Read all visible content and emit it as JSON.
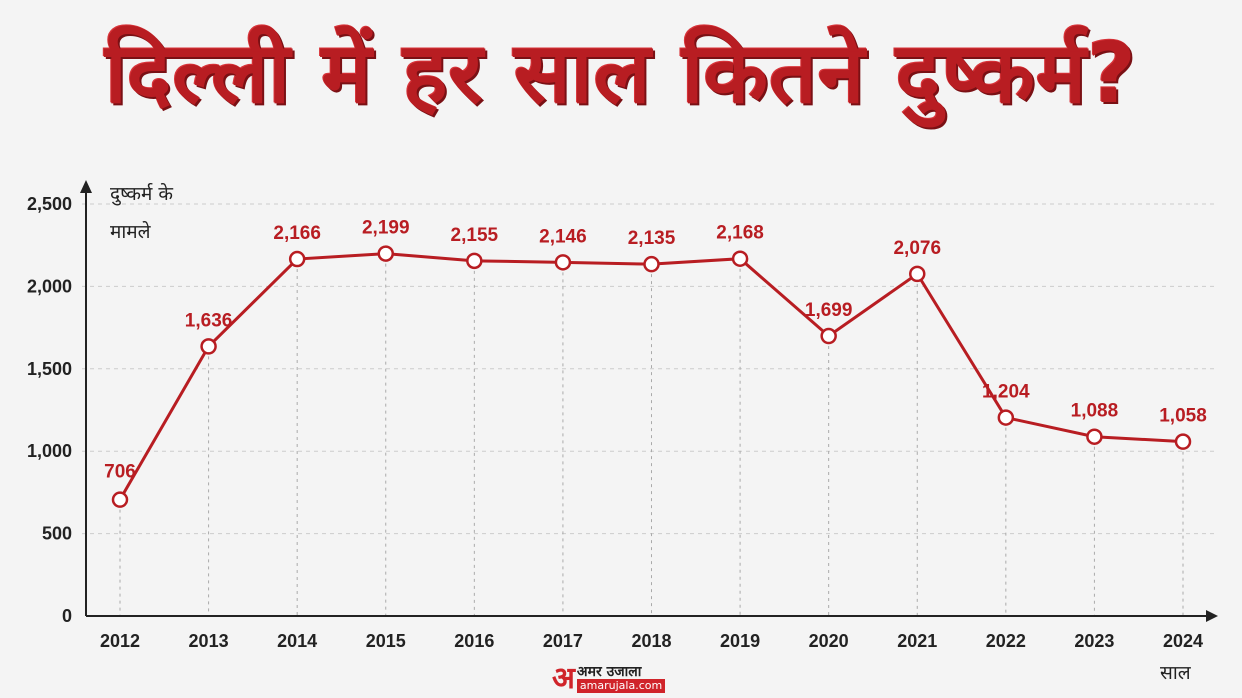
{
  "title": "दिल्ली में हर साल कितने दुष्कर्म?",
  "logo": {
    "hindi": "अमर उजाला",
    "url": "amarujala.com",
    "mark": "अ"
  },
  "colors": {
    "accent": "#b81d22",
    "axis": "#222222",
    "grid": "#cccccc",
    "background": "#f4f4f4"
  },
  "chart_data": {
    "type": "line",
    "title": "दिल्ली में हर साल कितने दुष्कर्म?",
    "ylabel": [
      "दुष्कर्म के",
      "मामले"
    ],
    "xlabel": "साल",
    "categories": [
      "2012",
      "2013",
      "2014",
      "2015",
      "2016",
      "2017",
      "2018",
      "2019",
      "2020",
      "2021",
      "2022",
      "2023",
      "2024"
    ],
    "values": [
      706,
      1636,
      2166,
      2199,
      2155,
      2146,
      2135,
      2168,
      1699,
      2076,
      1204,
      1088,
      1058
    ],
    "value_labels": [
      "706",
      "1,636",
      "2,166",
      "2,199",
      "2,155",
      "2,146",
      "2,135",
      "2,168",
      "1,699",
      "2,076",
      "1,204",
      "1,088",
      "1,058"
    ],
    "yticks": [
      0,
      500,
      1000,
      1500,
      2000,
      2500
    ],
    "ytick_labels": [
      "0",
      "500",
      "1,000",
      "1,500",
      "2,000",
      "2,500"
    ],
    "ylim": [
      0,
      2500
    ],
    "grid": true,
    "line_color": "#b81d22"
  }
}
